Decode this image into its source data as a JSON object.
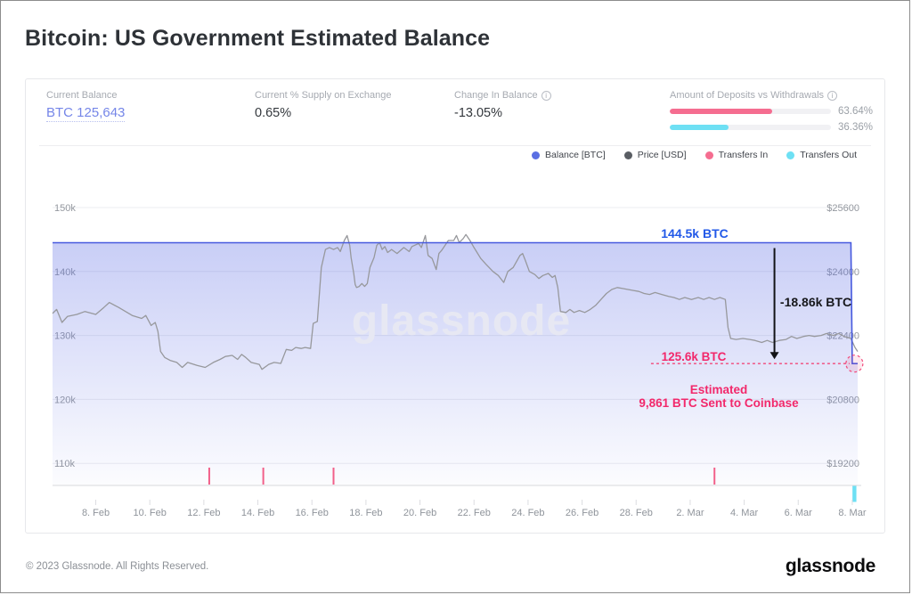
{
  "header": {
    "title": "Bitcoin: US Government Estimated Balance"
  },
  "stats": {
    "current_balance": {
      "label": "Current Balance",
      "value": "BTC 125,643"
    },
    "supply_on_exchange": {
      "label": "Current % Supply on Exchange",
      "value": "0.65%"
    },
    "change_in_balance": {
      "label": "Change In Balance",
      "value": "-13.05%",
      "info_icon": "i"
    },
    "deposits_vs_withdrawals": {
      "label": "Amount of Deposits vs Withdrawals",
      "info_icon": "i",
      "bars": [
        {
          "name": "deposits",
          "color": "#f56d90",
          "pct": 63.64,
          "label": "63.64%"
        },
        {
          "name": "withdrawals",
          "color": "#6ee0f4",
          "pct": 36.36,
          "label": "36.36%"
        }
      ]
    }
  },
  "legend": [
    {
      "label": "Balance [BTC]",
      "color": "#5a6fe3"
    },
    {
      "label": "Price [USD]",
      "color": "#595d63"
    },
    {
      "label": "Transfers In",
      "color": "#f56d90"
    },
    {
      "label": "Transfers Out",
      "color": "#6ee0f4"
    }
  ],
  "watermark": "glassnode",
  "chart_data": {
    "type": "line",
    "title": "Bitcoin: US Government Estimated Balance",
    "x_unit": "days (day 0 = 6 Feb 2023)",
    "x_domain": [
      0.4,
      30.2
    ],
    "x_ticks": [
      {
        "day": 2,
        "label": "8. Feb"
      },
      {
        "day": 4,
        "label": "10. Feb"
      },
      {
        "day": 6,
        "label": "12. Feb"
      },
      {
        "day": 8,
        "label": "14. Feb"
      },
      {
        "day": 10,
        "label": "16. Feb"
      },
      {
        "day": 12,
        "label": "18. Feb"
      },
      {
        "day": 14,
        "label": "20. Feb"
      },
      {
        "day": 16,
        "label": "22. Feb"
      },
      {
        "day": 18,
        "label": "24. Feb"
      },
      {
        "day": 20,
        "label": "26. Feb"
      },
      {
        "day": 22,
        "label": "28. Feb"
      },
      {
        "day": 24,
        "label": "2. Mar"
      },
      {
        "day": 26,
        "label": "4. Mar"
      },
      {
        "day": 28,
        "label": "6. Mar"
      },
      {
        "day": 30,
        "label": "8. Mar"
      }
    ],
    "y_left": {
      "label": "Balance [BTC]",
      "ticks": [
        {
          "value": 150000,
          "label": "150k"
        },
        {
          "value": 140000,
          "label": "140k"
        },
        {
          "value": 130000,
          "label": "130k"
        },
        {
          "value": 120000,
          "label": "120k"
        },
        {
          "value": 110000,
          "label": "110k"
        }
      ]
    },
    "y_right": {
      "label": "Price [USD]",
      "ticks": [
        {
          "value": 25600,
          "label": "$25600"
        },
        {
          "value": 24000,
          "label": "$24000"
        },
        {
          "value": 22400,
          "label": "$22400"
        },
        {
          "value": 20800,
          "label": "$20800"
        },
        {
          "value": 19200,
          "label": "$19200"
        }
      ]
    },
    "balance_series": {
      "name": "Balance [BTC]",
      "color": "#4659de",
      "points": [
        [
          0.4,
          144500
        ],
        [
          29.95,
          144500
        ],
        [
          30.0,
          125600
        ],
        [
          30.2,
          125600
        ]
      ]
    },
    "price_series": {
      "name": "Price [USD]",
      "color": "#97989c",
      "points": [
        [
          0.4,
          22950
        ],
        [
          0.55,
          23050
        ],
        [
          0.75,
          22725
        ],
        [
          0.95,
          22875
        ],
        [
          1.3,
          22925
        ],
        [
          1.6,
          23000
        ],
        [
          2.0,
          22925
        ],
        [
          2.3,
          23100
        ],
        [
          2.5,
          23225
        ],
        [
          2.85,
          23100
        ],
        [
          3.1,
          23000
        ],
        [
          3.35,
          22900
        ],
        [
          3.7,
          22825
        ],
        [
          3.85,
          22900
        ],
        [
          4.05,
          22650
        ],
        [
          4.2,
          22725
        ],
        [
          4.3,
          22500
        ],
        [
          4.4,
          22000
        ],
        [
          4.55,
          21850
        ],
        [
          4.75,
          21775
        ],
        [
          5.0,
          21725
        ],
        [
          5.2,
          21600
        ],
        [
          5.4,
          21725
        ],
        [
          5.75,
          21650
        ],
        [
          6.05,
          21600
        ],
        [
          6.35,
          21725
        ],
        [
          6.6,
          21800
        ],
        [
          6.8,
          21875
        ],
        [
          7.05,
          21900
        ],
        [
          7.25,
          21800
        ],
        [
          7.4,
          21925
        ],
        [
          7.55,
          21850
        ],
        [
          7.75,
          21725
        ],
        [
          8.05,
          21675
        ],
        [
          8.15,
          21550
        ],
        [
          8.4,
          21675
        ],
        [
          8.6,
          21725
        ],
        [
          8.85,
          21700
        ],
        [
          9.05,
          22050
        ],
        [
          9.25,
          22025
        ],
        [
          9.4,
          22100
        ],
        [
          9.6,
          22075
        ],
        [
          9.75,
          22100
        ],
        [
          9.95,
          22075
        ],
        [
          10.05,
          22700
        ],
        [
          10.2,
          22750
        ],
        [
          10.35,
          24100
        ],
        [
          10.5,
          24550
        ],
        [
          10.65,
          24600
        ],
        [
          10.8,
          24550
        ],
        [
          10.95,
          24600
        ],
        [
          11.05,
          24500
        ],
        [
          11.2,
          24775
        ],
        [
          11.3,
          24900
        ],
        [
          11.4,
          24650
        ],
        [
          11.45,
          24350
        ],
        [
          11.55,
          23950
        ],
        [
          11.6,
          23675
        ],
        [
          11.65,
          23600
        ],
        [
          11.75,
          23625
        ],
        [
          11.85,
          23700
        ],
        [
          11.95,
          23625
        ],
        [
          12.05,
          23700
        ],
        [
          12.15,
          24100
        ],
        [
          12.3,
          24350
        ],
        [
          12.4,
          24650
        ],
        [
          12.5,
          24725
        ],
        [
          12.6,
          24550
        ],
        [
          12.7,
          24625
        ],
        [
          12.8,
          24475
        ],
        [
          12.95,
          24550
        ],
        [
          13.15,
          24450
        ],
        [
          13.4,
          24600
        ],
        [
          13.6,
          24500
        ],
        [
          13.7,
          24625
        ],
        [
          13.95,
          24700
        ],
        [
          14.05,
          24600
        ],
        [
          14.2,
          24900
        ],
        [
          14.3,
          24400
        ],
        [
          14.45,
          24325
        ],
        [
          14.6,
          24050
        ],
        [
          14.7,
          24450
        ],
        [
          14.8,
          24525
        ],
        [
          15.05,
          24775
        ],
        [
          15.25,
          24775
        ],
        [
          15.35,
          24900
        ],
        [
          15.45,
          24725
        ],
        [
          15.6,
          24825
        ],
        [
          15.7,
          24925
        ],
        [
          15.85,
          24775
        ],
        [
          16.0,
          24600
        ],
        [
          16.25,
          24325
        ],
        [
          16.45,
          24175
        ],
        [
          16.7,
          24000
        ],
        [
          16.9,
          23900
        ],
        [
          17.1,
          23725
        ],
        [
          17.25,
          24000
        ],
        [
          17.45,
          24100
        ],
        [
          17.7,
          24400
        ],
        [
          17.8,
          24450
        ],
        [
          17.9,
          24275
        ],
        [
          18.05,
          24000
        ],
        [
          18.25,
          23925
        ],
        [
          18.4,
          23825
        ],
        [
          18.55,
          23900
        ],
        [
          18.75,
          23950
        ],
        [
          18.9,
          23850
        ],
        [
          19.0,
          23900
        ],
        [
          19.1,
          23600
        ],
        [
          19.2,
          23000
        ],
        [
          19.4,
          22975
        ],
        [
          19.55,
          23050
        ],
        [
          19.7,
          22975
        ],
        [
          19.9,
          23025
        ],
        [
          20.1,
          22975
        ],
        [
          20.3,
          23050
        ],
        [
          20.5,
          23150
        ],
        [
          20.7,
          23300
        ],
        [
          20.9,
          23450
        ],
        [
          21.1,
          23550
        ],
        [
          21.3,
          23600
        ],
        [
          21.5,
          23575
        ],
        [
          21.7,
          23550
        ],
        [
          21.9,
          23525
        ],
        [
          22.1,
          23500
        ],
        [
          22.3,
          23450
        ],
        [
          22.5,
          23425
        ],
        [
          22.7,
          23475
        ],
        [
          22.95,
          23425
        ],
        [
          23.2,
          23375
        ],
        [
          23.4,
          23350
        ],
        [
          23.6,
          23300
        ],
        [
          23.8,
          23350
        ],
        [
          24.05,
          23300
        ],
        [
          24.3,
          23350
        ],
        [
          24.5,
          23300
        ],
        [
          24.7,
          23350
        ],
        [
          24.9,
          23300
        ],
        [
          25.1,
          23350
        ],
        [
          25.3,
          23300
        ],
        [
          25.4,
          22600
        ],
        [
          25.5,
          22325
        ],
        [
          25.7,
          22300
        ],
        [
          25.95,
          22325
        ],
        [
          26.2,
          22300
        ],
        [
          26.4,
          22275
        ],
        [
          26.65,
          22225
        ],
        [
          26.85,
          22275
        ],
        [
          27.05,
          22225
        ],
        [
          27.3,
          22275
        ],
        [
          27.55,
          22300
        ],
        [
          27.75,
          22375
        ],
        [
          27.95,
          22325
        ],
        [
          28.2,
          22375
        ],
        [
          28.4,
          22400
        ],
        [
          28.6,
          22375
        ],
        [
          28.85,
          22400
        ],
        [
          29.05,
          22450
        ],
        [
          29.3,
          22400
        ],
        [
          29.5,
          22450
        ],
        [
          29.7,
          22375
        ],
        [
          29.95,
          22325
        ],
        [
          30.1,
          22100
        ],
        [
          30.2,
          22000
        ]
      ]
    },
    "transfers_in": {
      "name": "Transfers In",
      "color": "#f2608a",
      "days": [
        6.2,
        8.2,
        10.8,
        24.9
      ]
    },
    "transfers_out": {
      "name": "Transfers Out",
      "color": "#6ee0f4",
      "days": [
        30.08
      ]
    },
    "annotations": {
      "balance_peak": {
        "text": "144.5k BTC"
      },
      "balance_drop": {
        "text": "-18.86k BTC"
      },
      "balance_current": {
        "text": "125.6k BTC"
      },
      "note": [
        "Estimated",
        "9,861 BTC Sent to Coinbase"
      ],
      "arrow": {
        "day": 27.12,
        "from_value": 144500,
        "to_value": 125600
      },
      "dashed_line": {
        "value": 125600,
        "from_day": 22.55,
        "to_day": 29.9
      },
      "dashed_circle": {
        "day": 30.08,
        "value": 125600
      }
    }
  },
  "footer": {
    "copyright": "© 2023 Glassnode. All Rights Reserved.",
    "logo": "glassnode"
  }
}
